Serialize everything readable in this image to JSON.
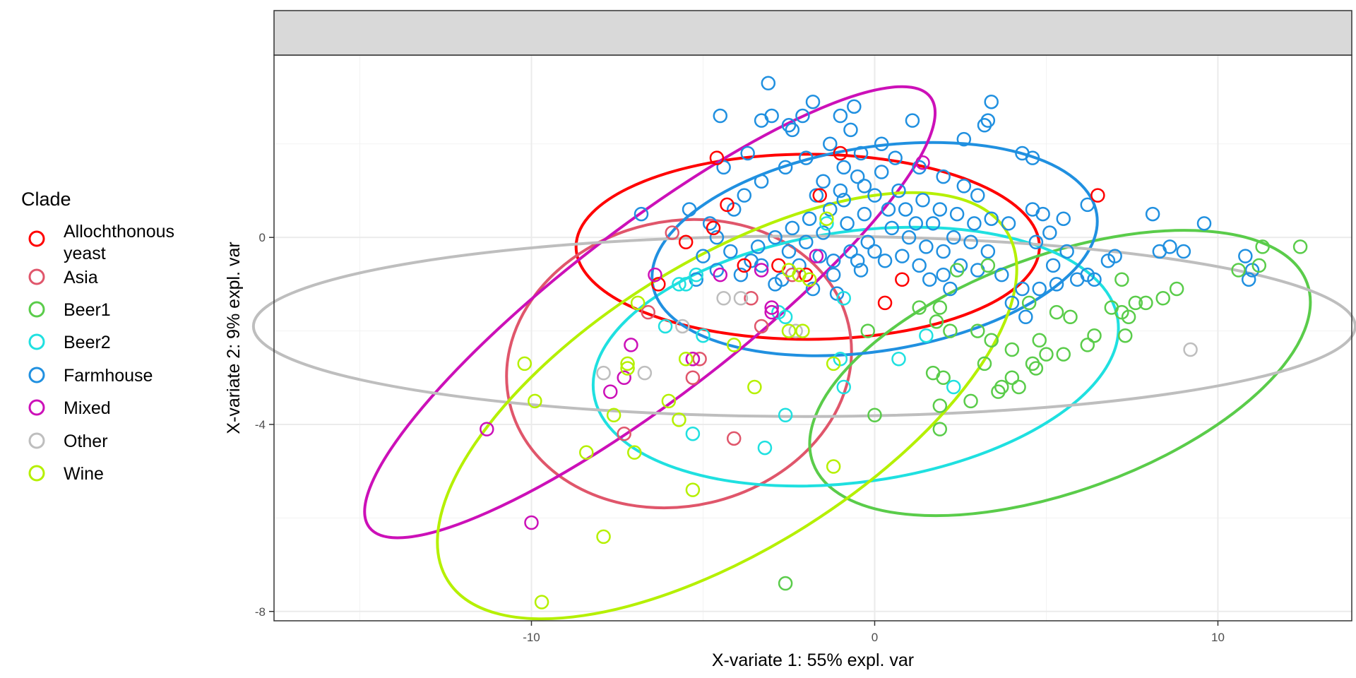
{
  "chart_data": {
    "type": "scatter",
    "title": "",
    "xlabel": "X-variate 1: 55% expl. var",
    "ylabel": "X-variate 2: 9% expl. var",
    "xlim": [
      -17.5,
      13.9
    ],
    "ylim": [
      -8.2,
      3.9
    ],
    "x_ticks": [
      -10,
      0,
      10
    ],
    "y_ticks": [
      0,
      -4,
      -8
    ],
    "x_tick_labels": [
      "-10",
      "0",
      "10"
    ],
    "y_tick_labels": [
      "0",
      "-4",
      "-8"
    ],
    "grid": true,
    "legend_title": "Clade",
    "legend_position": "left",
    "series": [
      {
        "name": "Allochthonous yeast",
        "color": "#ff0000",
        "ellipse": {
          "cx": -1.95,
          "cy": -0.2,
          "rx": 6.75,
          "ry": 1.98,
          "angle": 0
        },
        "points": [
          [
            -4.6,
            1.7
          ],
          [
            -4.3,
            0.7
          ],
          [
            -4.7,
            0.2
          ],
          [
            -5.5,
            -0.1
          ],
          [
            -6.3,
            -1
          ],
          [
            -3.8,
            -0.6
          ],
          [
            -2.8,
            -0.6
          ],
          [
            -2,
            -0.8
          ],
          [
            -1.6,
            0.9
          ],
          [
            -1,
            1.8
          ],
          [
            0.3,
            -1.4
          ],
          [
            0.8,
            -0.9
          ],
          [
            6.5,
            0.9
          ]
        ]
      },
      {
        "name": "Asia",
        "color": "#e0566b",
        "ellipse": {
          "cx": -5.7,
          "cy": -2.7,
          "rx": 4.15,
          "ry": 3.72,
          "angle": -103
        },
        "points": [
          [
            -6.6,
            -1.6
          ],
          [
            -5.3,
            -2.6
          ],
          [
            -5.3,
            -3.0
          ],
          [
            -7.3,
            -4.2
          ],
          [
            -3.6,
            -1.3
          ],
          [
            -3.3,
            -1.9
          ],
          [
            -4.1,
            -4.3
          ],
          [
            -2.4,
            -0.8
          ],
          [
            -5.1,
            -2.6
          ],
          [
            -5.9,
            0.1
          ]
        ]
      },
      {
        "name": "Beer1",
        "color": "#5acc4a",
        "ellipse": {
          "cx": 5.4,
          "cy": -2.9,
          "rx": 7.66,
          "ry": 2.52,
          "angle": -20
        },
        "points": [
          [
            -2.6,
            -7.4
          ],
          [
            0,
            -3.8
          ],
          [
            1.9,
            -4.1
          ],
          [
            1.9,
            -3.6
          ],
          [
            2.8,
            -3.5
          ],
          [
            1.7,
            -2.9
          ],
          [
            2,
            -3.0
          ],
          [
            2.2,
            -2
          ],
          [
            3,
            -2
          ],
          [
            3.4,
            -2.2
          ],
          [
            3.2,
            -2.7
          ],
          [
            4,
            -2.4
          ],
          [
            4.8,
            -2.2
          ],
          [
            5.5,
            -2.5
          ],
          [
            4.6,
            -2.7
          ],
          [
            5,
            -2.5
          ],
          [
            4.7,
            -2.8
          ],
          [
            3.7,
            -3.2
          ],
          [
            4,
            -3
          ],
          [
            3.6,
            -3.3
          ],
          [
            4.2,
            -3.2
          ],
          [
            4.5,
            -1.4
          ],
          [
            5.3,
            -1.6
          ],
          [
            5.7,
            -1.7
          ],
          [
            6.2,
            -2.3
          ],
          [
            6.4,
            -2.1
          ],
          [
            6.9,
            -1.5
          ],
          [
            7.2,
            -1.6
          ],
          [
            7.4,
            -1.7
          ],
          [
            7.3,
            -2.1
          ],
          [
            7.6,
            -1.4
          ],
          [
            7.9,
            -1.4
          ],
          [
            7.2,
            -0.9
          ],
          [
            8.4,
            -1.3
          ],
          [
            8.8,
            -1.1
          ],
          [
            11.3,
            -0.2
          ],
          [
            12.4,
            -0.2
          ],
          [
            11.2,
            -0.6
          ],
          [
            10.6,
            -0.7
          ],
          [
            1.3,
            -1.5
          ],
          [
            -0.2,
            -2
          ],
          [
            2.4,
            -0.7
          ],
          [
            1.9,
            -1.5
          ],
          [
            1.8,
            -1.8
          ],
          [
            3.3,
            -0.6
          ]
        ]
      },
      {
        "name": "Beer2",
        "color": "#1fe0e0",
        "ellipse": {
          "cx": -0.55,
          "cy": -2.55,
          "rx": 7.71,
          "ry": 2.68,
          "angle": -8
        },
        "points": [
          [
            -1.4,
            0.3
          ],
          [
            -2.6,
            -1.7
          ],
          [
            -5.5,
            -1
          ],
          [
            -5.2,
            -0.8
          ],
          [
            -5.7,
            -1
          ],
          [
            -6.1,
            -1.9
          ],
          [
            -5,
            -2.1
          ],
          [
            -5.3,
            -4.2
          ],
          [
            -3.2,
            -4.5
          ],
          [
            -2.6,
            -3.8
          ],
          [
            -0.9,
            -3.2
          ],
          [
            -1,
            -2.6
          ],
          [
            1.5,
            -2.1
          ],
          [
            2.3,
            -3.2
          ],
          [
            0.7,
            -2.6
          ],
          [
            -0.9,
            -1.3
          ],
          [
            -2.8,
            -1.6
          ]
        ]
      },
      {
        "name": "Farmhouse",
        "color": "#2090e0",
        "ellipse": {
          "cx": 0.0,
          "cy": -0.25,
          "rx": 6.55,
          "ry": 2.18,
          "angle": -9
        },
        "points": [
          [
            -3.1,
            3.3
          ],
          [
            -2.1,
            2.6
          ],
          [
            -4.5,
            2.6
          ],
          [
            -3.3,
            2.5
          ],
          [
            -3.0,
            2.6
          ],
          [
            -2.5,
            2.4
          ],
          [
            -2.4,
            2.3
          ],
          [
            -1.0,
            2.6
          ],
          [
            -0.7,
            2.3
          ],
          [
            0.2,
            2.0
          ],
          [
            1.1,
            2.5
          ],
          [
            3.4,
            2.9
          ],
          [
            3.3,
            2.5
          ],
          [
            3.2,
            2.4
          ],
          [
            4.3,
            1.8
          ],
          [
            4.6,
            1.7
          ],
          [
            -6.8,
            0.5
          ],
          [
            -5.4,
            0.6
          ],
          [
            -4.8,
            0.3
          ],
          [
            -4.6,
            0.0
          ],
          [
            -5,
            -0.4
          ],
          [
            -4.6,
            -0.7
          ],
          [
            -3.9,
            -0.8
          ],
          [
            -3.6,
            -0.5
          ],
          [
            -1.6,
            -0.4
          ],
          [
            -1.2,
            -0.8
          ],
          [
            -0.4,
            -0.7
          ],
          [
            0.3,
            -0.5
          ],
          [
            0.8,
            -0.4
          ],
          [
            1.3,
            -0.6
          ],
          [
            2.0,
            -0.8
          ],
          [
            2.5,
            -0.6
          ],
          [
            3.0,
            -0.7
          ],
          [
            3.7,
            -0.8
          ],
          [
            4.3,
            -1.1
          ],
          [
            4.8,
            -1.1
          ],
          [
            5.3,
            -1.0
          ],
          [
            5.9,
            -0.9
          ],
          [
            6.2,
            -0.8
          ],
          [
            6.4,
            -0.9
          ],
          [
            6.8,
            -0.5
          ],
          [
            7.0,
            -0.4
          ],
          [
            6.2,
            0.7
          ],
          [
            5.5,
            0.4
          ],
          [
            4.9,
            0.5
          ],
          [
            4.6,
            0.6
          ],
          [
            8.1,
            0.5
          ],
          [
            8.3,
            -0.3
          ],
          [
            8.6,
            -0.2
          ],
          [
            9.0,
            -0.3
          ],
          [
            9.6,
            0.3
          ],
          [
            10.8,
            -0.4
          ],
          [
            11.0,
            -0.7
          ],
          [
            10.9,
            -0.9
          ],
          [
            4.4,
            -1.7
          ],
          [
            4.0,
            -1.4
          ],
          [
            2.2,
            -1.1
          ],
          [
            1.6,
            -0.9
          ],
          [
            -1.1,
            -1.2
          ],
          [
            -1.8,
            -1.1
          ],
          [
            -2.7,
            -0.9
          ],
          [
            -3.3,
            -0.6
          ],
          [
            -4.2,
            -0.3
          ],
          [
            -5.2,
            -0.9
          ],
          [
            -1.5,
            1.2
          ],
          [
            -1.0,
            1.0
          ],
          [
            -0.5,
            1.3
          ],
          [
            0.2,
            1.4
          ],
          [
            0.7,
            1.0
          ],
          [
            1.4,
            0.8
          ],
          [
            1.9,
            0.6
          ],
          [
            2.4,
            0.5
          ],
          [
            2.9,
            0.3
          ],
          [
            3.4,
            0.4
          ],
          [
            3.9,
            0.3
          ],
          [
            -0.3,
            0.5
          ],
          [
            -0.8,
            0.3
          ],
          [
            -1.3,
            0.6
          ],
          [
            -1.9,
            0.4
          ],
          [
            -2.4,
            0.2
          ],
          [
            -2.9,
            0.0
          ],
          [
            -3.4,
            -0.2
          ],
          [
            0.5,
            0.2
          ],
          [
            1.0,
            0.0
          ],
          [
            1.5,
            -0.2
          ],
          [
            2.0,
            -0.3
          ],
          [
            -0.2,
            -0.1
          ],
          [
            -0.7,
            -0.3
          ],
          [
            -1.2,
            -0.5
          ],
          [
            -2.2,
            -0.6
          ],
          [
            -2.6,
            1.5
          ],
          [
            -2.0,
            1.7
          ],
          [
            -1.3,
            2.0
          ],
          [
            -0.4,
            1.8
          ],
          [
            0.6,
            1.7
          ],
          [
            1.3,
            1.5
          ],
          [
            2.0,
            1.3
          ],
          [
            2.6,
            1.1
          ],
          [
            3.0,
            0.9
          ],
          [
            -3.3,
            1.2
          ],
          [
            -3.8,
            0.9
          ],
          [
            -4.1,
            0.6
          ],
          [
            -1.7,
            0.9
          ],
          [
            -0.9,
            0.8
          ],
          [
            0.0,
            0.9
          ],
          [
            0.9,
            0.6
          ],
          [
            1.7,
            0.3
          ],
          [
            2.3,
            0.0
          ],
          [
            2.8,
            -0.1
          ],
          [
            3.3,
            -0.3
          ],
          [
            -0.5,
            -0.5
          ],
          [
            0.0,
            -0.3
          ],
          [
            -1.5,
            0.1
          ],
          [
            -2.0,
            -0.1
          ],
          [
            -2.5,
            -0.3
          ],
          [
            4.7,
            -0.1
          ],
          [
            5.1,
            0.1
          ],
          [
            5.6,
            -0.3
          ],
          [
            5.2,
            -0.6
          ],
          [
            -1.8,
            2.9
          ],
          [
            -0.6,
            2.8
          ],
          [
            2.6,
            2.1
          ],
          [
            -2.9,
            -1.0
          ],
          [
            -0.9,
            1.5
          ],
          [
            -0.3,
            1.1
          ],
          [
            0.4,
            0.6
          ],
          [
            1.2,
            0.3
          ],
          [
            -4.4,
            1.5
          ],
          [
            -3.7,
            1.8
          ]
        ]
      },
      {
        "name": "Mixed",
        "color": "#cc10b8",
        "ellipse": {
          "cx": -6.55,
          "cy": -1.6,
          "rx": 10.3,
          "ry": 1.82,
          "angle": -37.5
        },
        "points": [
          [
            -11.3,
            -4.1
          ],
          [
            -10.0,
            -6.1
          ],
          [
            -7.3,
            -3.0
          ],
          [
            -7.7,
            -3.3
          ],
          [
            -7.1,
            -2.3
          ],
          [
            -6.4,
            -0.8
          ],
          [
            -5.3,
            -2.6
          ],
          [
            -4.5,
            -0.8
          ],
          [
            -3.3,
            -0.7
          ],
          [
            -3,
            -1.5
          ],
          [
            -3,
            -1.6
          ],
          [
            -1.7,
            -0.4
          ],
          [
            1.4,
            1.6
          ]
        ]
      },
      {
        "name": "Other",
        "color": "#bebebe",
        "ellipse": {
          "cx": -2.05,
          "cy": -1.9,
          "rx": 16.05,
          "ry": 1.93,
          "angle": 0
        },
        "points": [
          [
            -7.9,
            -2.9
          ],
          [
            -6.7,
            -2.9
          ],
          [
            -5.6,
            -1.9
          ],
          [
            -4.4,
            -1.3
          ],
          [
            -3.9,
            -1.3
          ],
          [
            -2.3,
            -2.0
          ],
          [
            9.2,
            -2.4
          ]
        ]
      },
      {
        "name": "Wine",
        "color": "#b5f000",
        "ellipse": {
          "cx": -4.3,
          "cy": -3.6,
          "rx": 9.6,
          "ry": 3.08,
          "angle": -32
        },
        "points": [
          [
            -9.7,
            -7.8
          ],
          [
            -7.9,
            -6.4
          ],
          [
            -5.3,
            -5.4
          ],
          [
            -8.4,
            -4.6
          ],
          [
            -7.0,
            -4.6
          ],
          [
            -9.9,
            -3.5
          ],
          [
            -10.2,
            -2.7
          ],
          [
            -7.6,
            -3.8
          ],
          [
            -7.2,
            -2.8
          ],
          [
            -6,
            -3.5
          ],
          [
            -5.7,
            -3.9
          ],
          [
            -5.5,
            -2.6
          ],
          [
            -7.2,
            -2.7
          ],
          [
            -6.9,
            -1.4
          ],
          [
            -4.1,
            -2.3
          ],
          [
            -3.5,
            -3.2
          ],
          [
            -2.5,
            -2.0
          ],
          [
            -2.1,
            -2.0
          ],
          [
            -2.5,
            -0.7
          ],
          [
            -2.2,
            -0.8
          ],
          [
            -1.4,
            0.4
          ],
          [
            -1.9,
            -0.9
          ],
          [
            -1.2,
            -2.7
          ],
          [
            -1.2,
            -4.9
          ]
        ]
      }
    ]
  }
}
